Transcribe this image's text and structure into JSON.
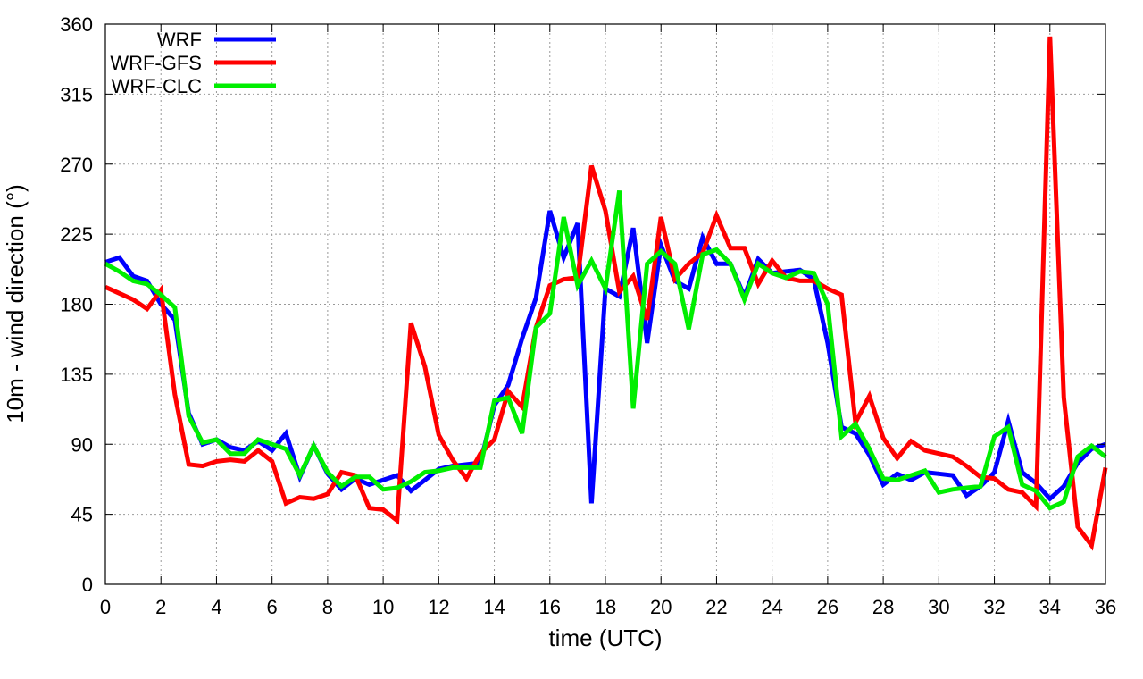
{
  "chart_data": {
    "type": "line",
    "title": "",
    "xlabel": "time (UTC)",
    "ylabel": "10m - wind direction (°)",
    "xlim": [
      0,
      36
    ],
    "ylim": [
      0,
      360
    ],
    "xticks": [
      "0",
      "2",
      "4",
      "6",
      "8",
      "10",
      "12",
      "14",
      "16",
      "18",
      "20",
      "22",
      "24",
      "26",
      "28",
      "30",
      "32",
      "34",
      "36"
    ],
    "yticks": [
      "0",
      "45",
      "90",
      "135",
      "180",
      "225",
      "270",
      "315",
      "360"
    ],
    "grid": true,
    "legend_position": "top-left",
    "series": [
      {
        "name": "WRF",
        "color": "#0000ff",
        "x": [
          0,
          0.5,
          1,
          1.5,
          2,
          2.5,
          3,
          3.5,
          4,
          4.5,
          5,
          5.5,
          6,
          6.5,
          7,
          7.5,
          8,
          8.5,
          9,
          9.5,
          10,
          10.5,
          11,
          11.5,
          12,
          12.5,
          13,
          13.5,
          14,
          14.5,
          15,
          15.5,
          16,
          16.5,
          17,
          17.5,
          18,
          18.5,
          19,
          19.5,
          20,
          20.5,
          21,
          21.5,
          22,
          22.5,
          23,
          23.5,
          24,
          24.5,
          25,
          25.5,
          26,
          26.5,
          27,
          27.5,
          28,
          28.5,
          29,
          29.5,
          30,
          30.5,
          31,
          31.5,
          32,
          32.5,
          33,
          33.5,
          34,
          34.5,
          35,
          35.5,
          36
        ],
        "y": [
          207,
          210,
          198,
          195,
          180,
          170,
          110,
          90,
          93,
          88,
          86,
          92,
          86,
          97,
          69,
          89,
          71,
          61,
          68,
          64,
          67,
          70,
          60,
          67,
          74,
          76,
          77,
          78,
          115,
          128,
          158,
          184,
          240,
          210,
          232,
          52,
          190,
          185,
          229,
          155,
          218,
          195,
          190,
          223,
          206,
          206,
          185,
          209,
          200,
          201,
          202,
          196,
          155,
          101,
          97,
          83,
          64,
          71,
          67,
          72,
          71,
          70,
          57,
          63,
          72,
          105,
          72,
          65,
          55,
          63,
          78,
          87,
          90
        ]
      },
      {
        "name": "WRF-GFS",
        "color": "#ff0000",
        "x": [
          0,
          0.5,
          1,
          1.5,
          2,
          2.5,
          3,
          3.5,
          4,
          4.5,
          5,
          5.5,
          6,
          6.5,
          7,
          7.5,
          8,
          8.5,
          9,
          9.5,
          10,
          10.5,
          11,
          11.5,
          12,
          12.5,
          13,
          13.5,
          14,
          14.5,
          15,
          15.5,
          16,
          16.5,
          17,
          17.5,
          18,
          18.5,
          19,
          19.5,
          20,
          20.5,
          21,
          21.5,
          22,
          22.5,
          23,
          23.5,
          24,
          24.5,
          25,
          25.5,
          26,
          26.5,
          27,
          27.5,
          28,
          28.5,
          29,
          29.5,
          30,
          30.5,
          31,
          31.5,
          32,
          32.5,
          33,
          33.5,
          34,
          34.5,
          35,
          35.5,
          36
        ],
        "y": [
          191,
          187,
          183,
          177,
          189,
          122,
          77,
          76,
          79,
          80,
          79,
          86,
          79,
          52,
          56,
          55,
          58,
          72,
          70,
          49,
          48,
          41,
          168,
          140,
          96,
          80,
          68,
          84,
          93,
          124,
          114,
          165,
          192,
          196,
          197,
          269,
          240,
          188,
          198,
          170,
          236,
          196,
          206,
          213,
          237,
          216,
          216,
          193,
          208,
          197,
          195,
          195,
          190,
          186,
          104,
          121,
          94,
          81,
          92,
          86,
          84,
          82,
          76,
          69,
          68,
          61,
          59,
          50,
          352,
          120,
          37,
          25,
          75
        ]
      },
      {
        "name": "WRF-CLC",
        "color": "#00ee00",
        "x": [
          0,
          0.5,
          1,
          1.5,
          2,
          2.5,
          3,
          3.5,
          4,
          4.5,
          5,
          5.5,
          6,
          6.5,
          7,
          7.5,
          8,
          8.5,
          9,
          9.5,
          10,
          10.5,
          11,
          11.5,
          12,
          12.5,
          13,
          13.5,
          14,
          14.5,
          15,
          15.5,
          16,
          16.5,
          17,
          17.5,
          18,
          18.5,
          19,
          19.5,
          20,
          20.5,
          21,
          21.5,
          22,
          22.5,
          23,
          23.5,
          24,
          24.5,
          25,
          25.5,
          26,
          26.5,
          27,
          27.5,
          28,
          28.5,
          29,
          29.5,
          30,
          30.5,
          31,
          31.5,
          32,
          32.5,
          33,
          33.5,
          34,
          34.5,
          35,
          35.5,
          36
        ],
        "y": [
          206,
          201,
          195,
          193,
          186,
          178,
          108,
          91,
          93,
          84,
          84,
          93,
          90,
          87,
          70,
          89,
          72,
          63,
          69,
          69,
          61,
          62,
          66,
          72,
          73,
          75,
          75,
          75,
          118,
          120,
          97,
          165,
          174,
          236,
          192,
          208,
          190,
          253,
          113,
          206,
          214,
          206,
          164,
          212,
          215,
          206,
          183,
          206,
          200,
          197,
          201,
          200,
          180,
          95,
          103,
          87,
          68,
          67,
          70,
          73,
          59,
          61,
          62,
          63,
          95,
          101,
          64,
          60,
          49,
          53,
          82,
          89,
          82
        ]
      }
    ]
  }
}
